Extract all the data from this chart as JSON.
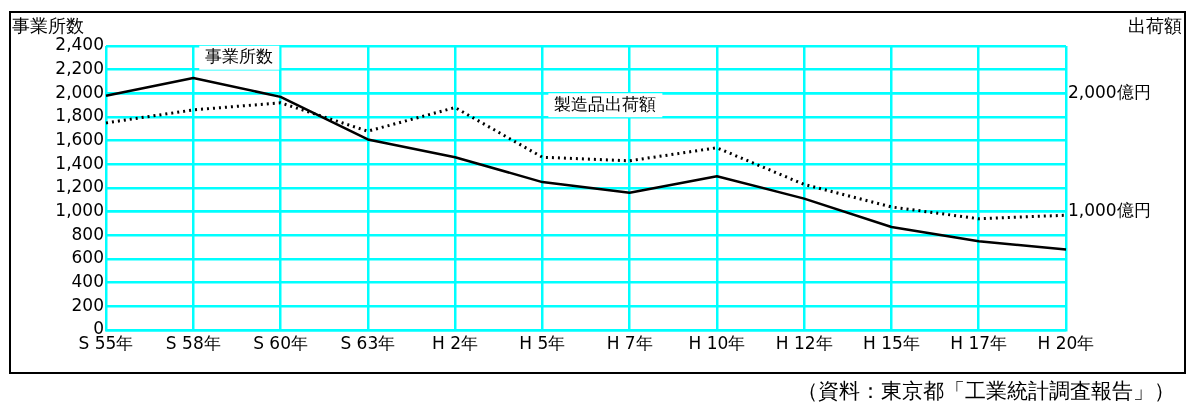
{
  "chart_data": {
    "type": "line",
    "ylabel": "事業所数",
    "y2label": "出荷額",
    "categories": [
      "S 55年",
      "S 58年",
      "S 60年",
      "S 63年",
      "H 2年",
      "H 5年",
      "H 7年",
      "H 10年",
      "H 12年",
      "H 15年",
      "H 17年",
      "H 20年"
    ],
    "series": [
      {
        "name": "事業所数",
        "color": "#000000",
        "line_style": "solid",
        "values": [
          1980,
          2130,
          1970,
          1610,
          1460,
          1250,
          1160,
          1300,
          1110,
          870,
          750,
          680
        ]
      },
      {
        "name": "製造品出荷額",
        "color": "#000000",
        "line_style": "dotted",
        "axis": "y2",
        "values": [
          1750,
          1860,
          1920,
          1680,
          1880,
          1460,
          1430,
          1540,
          1230,
          1040,
          940,
          970
        ]
      }
    ],
    "ylim": [
      0,
      2400
    ],
    "yticks": [
      0,
      {
        "value": 200,
        "label": "200"
      },
      {
        "value": 400,
        "label": "400"
      },
      {
        "value": 600,
        "label": "600"
      },
      {
        "value": 800,
        "label": "800"
      },
      {
        "value": 1000,
        "label": "1,000"
      },
      {
        "value": 1200,
        "label": "1,200"
      },
      {
        "value": 1400,
        "label": "1,400"
      },
      {
        "value": 1600,
        "label": "1,600"
      },
      {
        "value": 1800,
        "label": "1,800"
      },
      {
        "value": 2000,
        "label": "2,000"
      },
      {
        "value": 2200,
        "label": "2,200"
      },
      {
        "value": 2400,
        "label": "2,400"
      }
    ],
    "y2lim": [
      0,
      2400
    ],
    "y2ticks": [
      {
        "value": 1000,
        "label": "1,000億円"
      },
      {
        "value": 2000,
        "label": "2,000億円"
      }
    ],
    "grid": true,
    "legend": false,
    "marker": "none",
    "annotations": [
      "（資料：東京都「工業統計調査報告」）"
    ]
  }
}
